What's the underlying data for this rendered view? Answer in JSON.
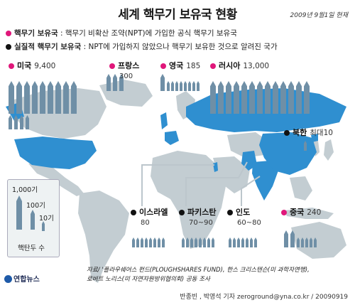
{
  "title": "세계 핵무기 보유국 현황",
  "date": "2009년 9월1일 현재",
  "legend": {
    "official": {
      "label": "핵무기 보유국",
      "desc": " : 핵무기 비확산 조약(NPT)에 가입한 공식 핵무기 보유국",
      "color": "#e0177a"
    },
    "defacto": {
      "label": "실질적 핵무기 보유국",
      "desc": " : NPT에 가입하지 않았으나 핵무기 보유한 것으로 알려진 국가",
      "color": "#111111"
    }
  },
  "scale": {
    "unit_1000": "1,000기",
    "unit_100": "100기",
    "unit_10": "10기",
    "caption": "핵탄두 수"
  },
  "source": {
    "line1": "자료/ '플라우쉐어스 펀드(PLOUGHSHARES FUND), 한스 크리스텐슨(미 과학자연맹),",
    "line2": "로버트 노리스(미 자연자원방위협의회) 공동 조사"
  },
  "credit": "반종빈 , 박영석 기자 zeroground@yna.co.kr / 20090919",
  "logo": "연합뉴스",
  "colors": {
    "map_land": "#c3cdd2",
    "map_highlight": "#2f8fd0",
    "ocean": "#ffffff",
    "missile": "#6f8fa6"
  },
  "chart_data": {
    "type": "table",
    "title": "세계 핵무기 보유국 현황",
    "series": [
      {
        "name": "핵무기 보유국",
        "categories": [
          "미국",
          "프랑스",
          "영국",
          "러시아",
          "중국"
        ],
        "values": [
          "9,400",
          "300",
          "185",
          "13,000",
          "240"
        ]
      },
      {
        "name": "실질적 핵무기 보유국",
        "categories": [
          "북한",
          "이스라엘",
          "파키스탄",
          "인도"
        ],
        "values": [
          "최대10",
          "80",
          "70~90",
          "60~80"
        ]
      }
    ],
    "countries": [
      {
        "name": "미국",
        "warheads": "9,400",
        "group": "official"
      },
      {
        "name": "프랑스",
        "warheads": "300",
        "group": "official"
      },
      {
        "name": "영국",
        "warheads": "185",
        "group": "official"
      },
      {
        "name": "러시아",
        "warheads": "13,000",
        "group": "official"
      },
      {
        "name": "북한",
        "warheads": "최대10",
        "group": "defacto"
      },
      {
        "name": "이스라엘",
        "warheads": "80",
        "group": "defacto"
      },
      {
        "name": "파키스탄",
        "warheads": "70~90",
        "group": "defacto"
      },
      {
        "name": "인도",
        "warheads": "60~80",
        "group": "defacto"
      },
      {
        "name": "중국",
        "warheads": "240",
        "group": "official"
      }
    ]
  }
}
